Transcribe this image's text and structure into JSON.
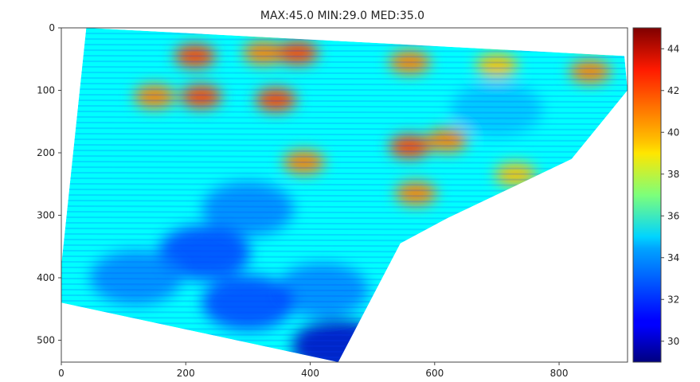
{
  "chart_data": {
    "type": "heatmap",
    "title": "MAX:45.0 MIN:29.0 MED:35.0",
    "xlabel": "",
    "ylabel": "",
    "xlim": [
      0,
      910
    ],
    "ylim": [
      535,
      0
    ],
    "x_ticks": [
      0,
      200,
      400,
      600,
      800
    ],
    "y_ticks": [
      0,
      100,
      200,
      300,
      400,
      500
    ],
    "colormap": "jet",
    "colorbar": {
      "vmin": 29,
      "vmax": 45,
      "ticks": [
        30,
        32,
        34,
        36,
        38,
        40,
        42,
        44
      ]
    },
    "field_outline": [
      [
        40,
        0
      ],
      [
        905,
        45
      ],
      [
        910,
        100
      ],
      [
        820,
        210
      ],
      [
        620,
        305
      ],
      [
        545,
        345
      ],
      [
        445,
        535
      ],
      [
        0,
        440
      ],
      [
        0,
        380
      ]
    ],
    "hot_spots": [
      {
        "x": 215,
        "y": 45,
        "value": 42
      },
      {
        "x": 325,
        "y": 40,
        "value": 41
      },
      {
        "x": 380,
        "y": 40,
        "value": 42
      },
      {
        "x": 345,
        "y": 115,
        "value": 42
      },
      {
        "x": 225,
        "y": 110,
        "value": 42
      },
      {
        "x": 150,
        "y": 110,
        "value": 41
      },
      {
        "x": 560,
        "y": 55,
        "value": 41
      },
      {
        "x": 700,
        "y": 60,
        "value": 40
      },
      {
        "x": 850,
        "y": 70,
        "value": 41
      },
      {
        "x": 560,
        "y": 190,
        "value": 42
      },
      {
        "x": 620,
        "y": 180,
        "value": 41
      },
      {
        "x": 570,
        "y": 265,
        "value": 41
      },
      {
        "x": 390,
        "y": 215,
        "value": 41
      },
      {
        "x": 730,
        "y": 235,
        "value": 40
      }
    ],
    "cool_spots": [
      {
        "x": 300,
        "y": 290,
        "value": 33
      },
      {
        "x": 230,
        "y": 360,
        "value": 32
      },
      {
        "x": 420,
        "y": 420,
        "value": 33
      },
      {
        "x": 120,
        "y": 400,
        "value": 33
      },
      {
        "x": 300,
        "y": 440,
        "value": 32
      },
      {
        "x": 700,
        "y": 130,
        "value": 34
      },
      {
        "x": 445,
        "y": 510,
        "value": 30
      }
    ],
    "grid": false
  }
}
